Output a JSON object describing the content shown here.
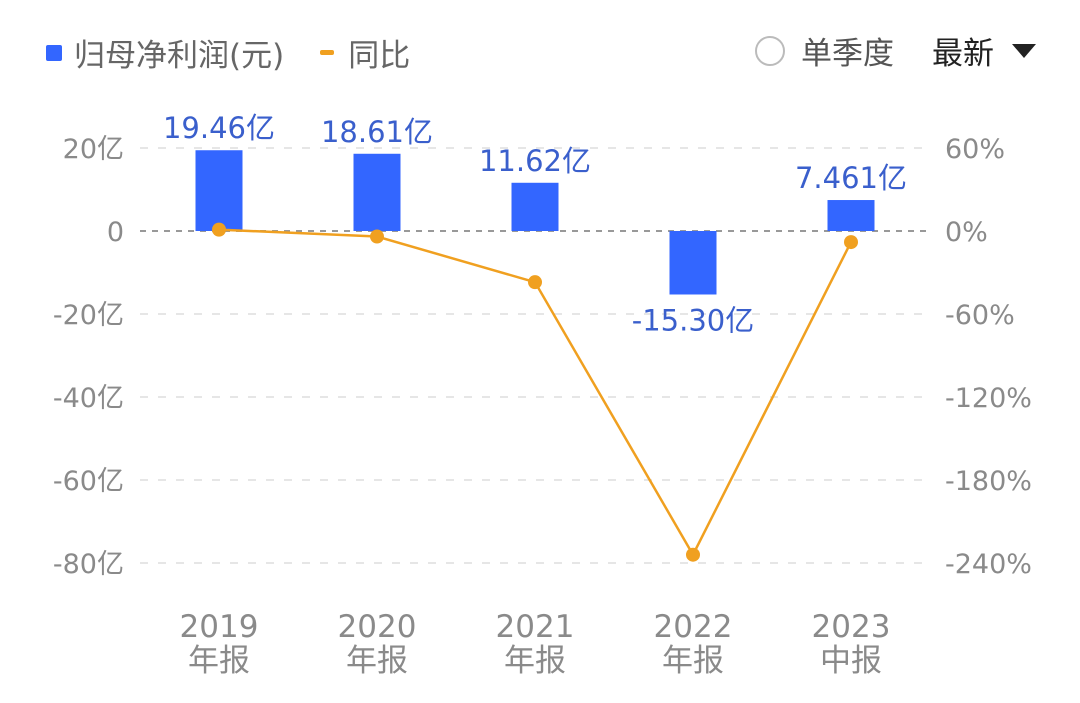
{
  "legend": {
    "bar_label": "归母净利润(元)",
    "line_label": "同比"
  },
  "controls": {
    "quarter_label": "单季度",
    "latest_label": "最新"
  },
  "colors": {
    "bar": "#3366ff",
    "line": "#f0a020",
    "grid": "#dddddd",
    "zero": "#999999"
  },
  "chart_data": {
    "type": "bar",
    "categories": [
      [
        "2019",
        "年报"
      ],
      [
        "2020",
        "年报"
      ],
      [
        "2021",
        "年报"
      ],
      [
        "2022",
        "年报"
      ],
      [
        "2023",
        "中报"
      ]
    ],
    "series": [
      {
        "name": "归母净利润(元)",
        "type": "bar",
        "axis": "left",
        "values": [
          19.46,
          18.61,
          11.62,
          -15.3,
          7.461
        ],
        "labels": [
          "19.46亿",
          "18.61亿",
          "11.62亿",
          "-15.30亿",
          "7.461亿"
        ]
      },
      {
        "name": "同比",
        "type": "line",
        "axis": "right",
        "values": [
          1,
          -4,
          -37,
          -234,
          -8
        ]
      }
    ],
    "left_axis": {
      "ticks": [
        20,
        0,
        -20,
        -40,
        -60,
        -80
      ],
      "tick_labels": [
        "20亿",
        "0",
        "-20亿",
        "-40亿",
        "-60亿",
        "-80亿"
      ],
      "range": [
        -80,
        20
      ]
    },
    "right_axis": {
      "ticks": [
        60,
        0,
        -60,
        -120,
        -180,
        -240
      ],
      "tick_labels": [
        "60%",
        "0%",
        "-60%",
        "-120%",
        "-180%",
        "-240%"
      ],
      "range": [
        -240,
        60
      ]
    },
    "grid": true,
    "legend_position": "top-left"
  }
}
